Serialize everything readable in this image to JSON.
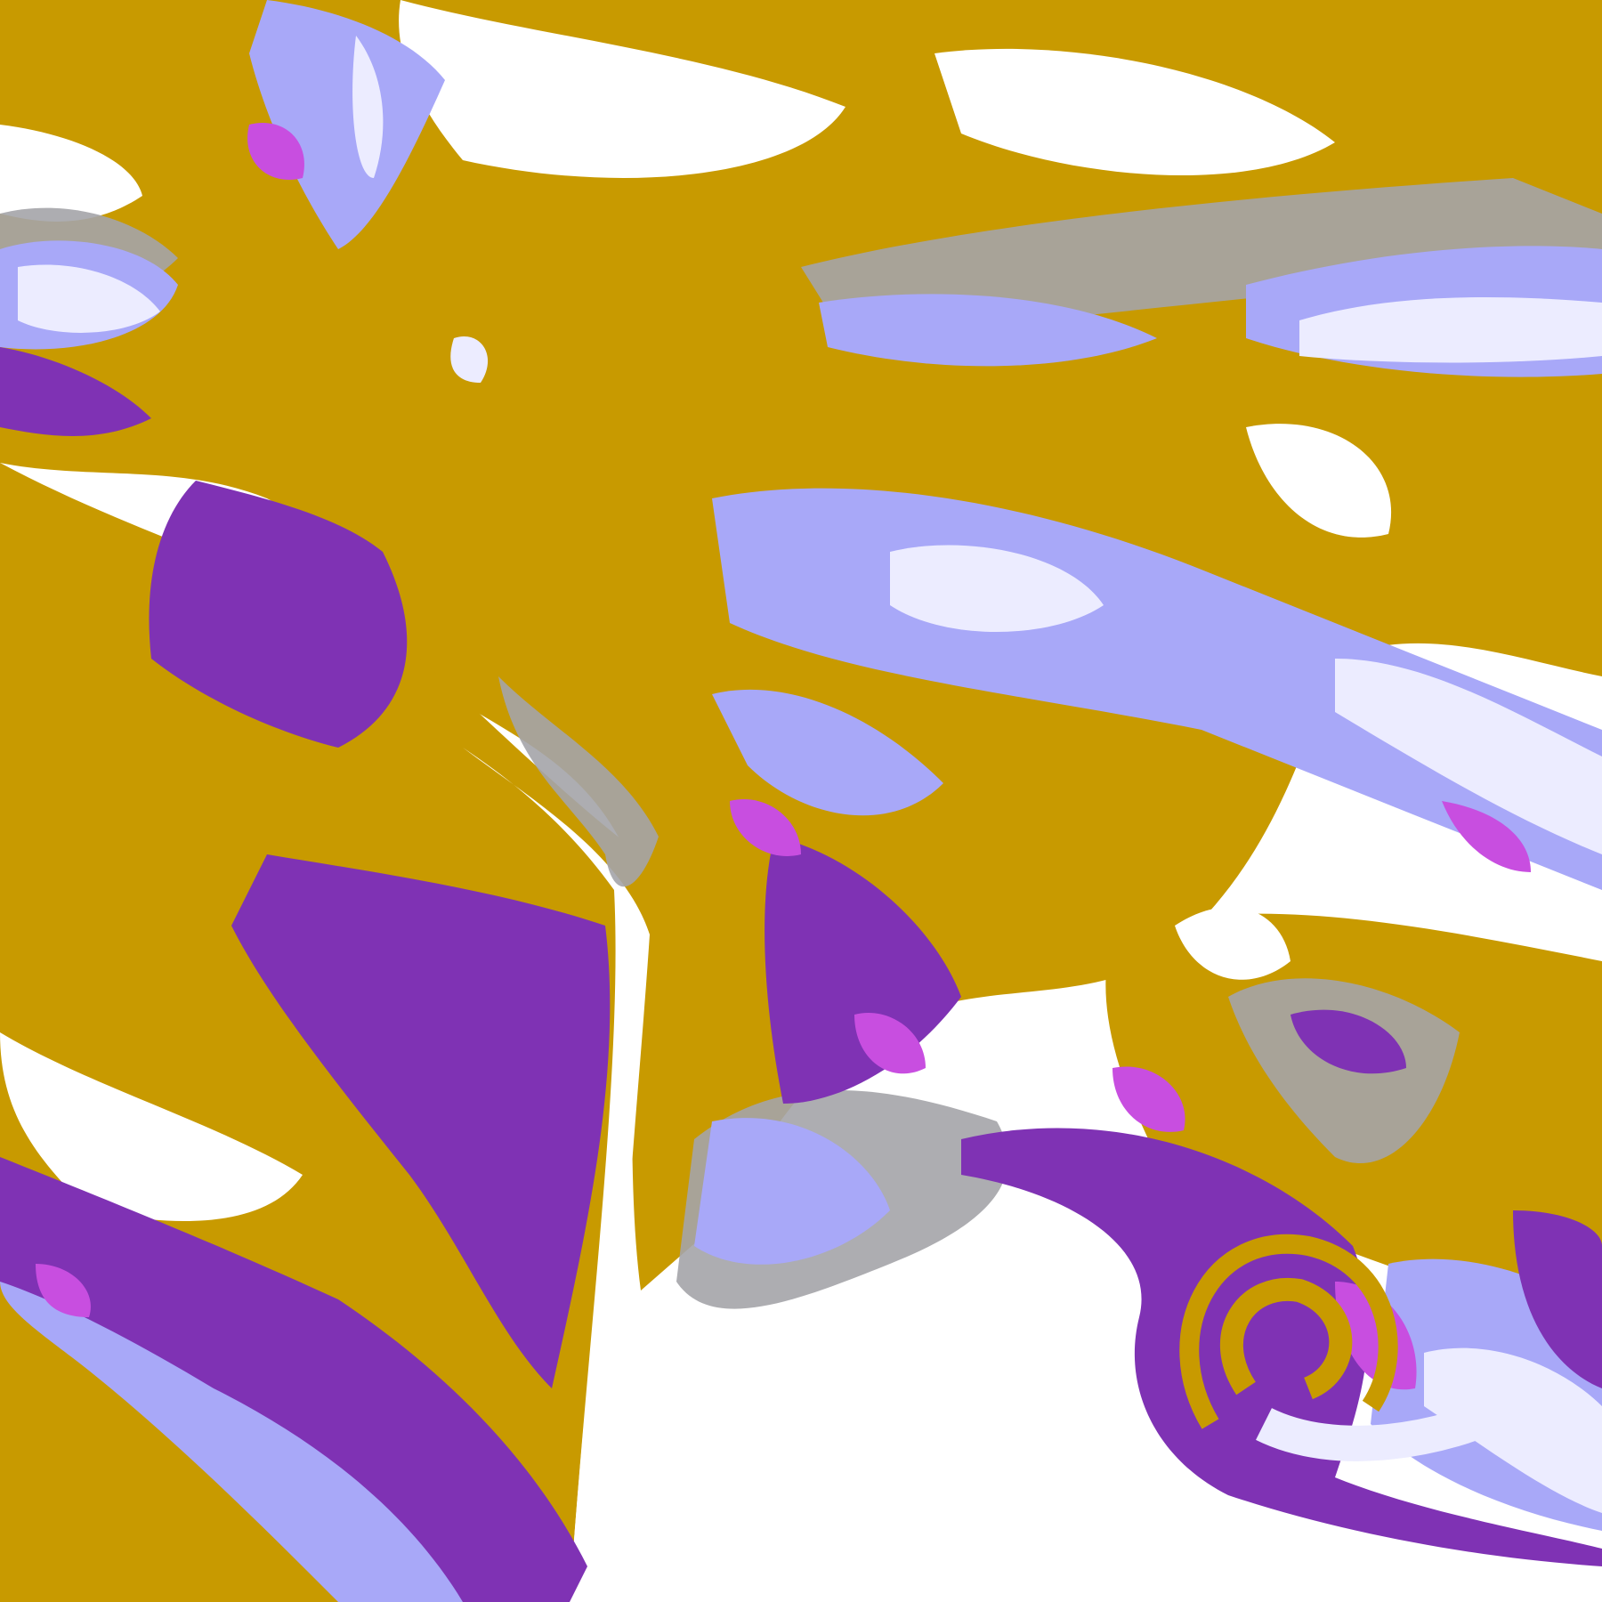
{
  "image": {
    "kind": "satellite cloud-type classification over South America",
    "colors": {
      "background_clear": "#ffffff",
      "low_cloud": "#c89a00",
      "low_cloud_dark": "#a8820a",
      "mid_cloud_gray": "#a4a4a8",
      "thin_cirrus": "#a8a8f8",
      "high_cloud_pale": "#ececff",
      "deep_purple": "#7f32b4",
      "magenta": "#c84ee0"
    }
  }
}
